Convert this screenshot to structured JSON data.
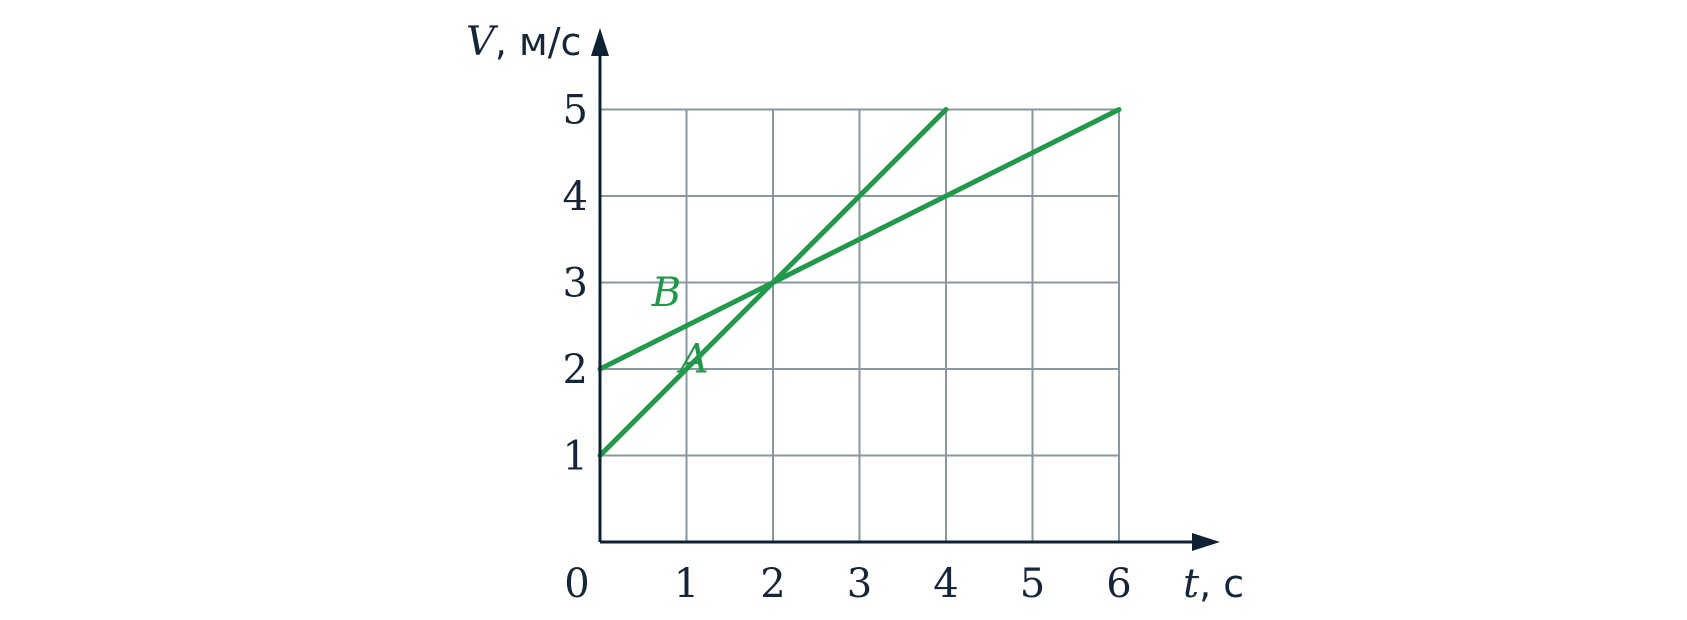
{
  "chart_data": {
    "type": "line",
    "x_axis": {
      "variable": "t",
      "unit": ", с",
      "ticks": [
        "1",
        "2",
        "3",
        "4",
        "5",
        "6"
      ],
      "range": [
        0,
        6
      ]
    },
    "y_axis": {
      "variable": "V",
      "unit": ", м/с",
      "ticks": [
        "1",
        "2",
        "3",
        "4",
        "5"
      ],
      "range": [
        0,
        5
      ]
    },
    "origin_label": "0",
    "grid": true,
    "line_color": "#21994a",
    "series": [
      {
        "name": "A",
        "x": [
          0,
          1,
          2,
          3,
          4
        ],
        "y": [
          1,
          2,
          3,
          4,
          5
        ]
      },
      {
        "name": "B",
        "x": [
          0,
          2,
          4,
          6
        ],
        "y": [
          2,
          3,
          4,
          5
        ]
      }
    ]
  }
}
